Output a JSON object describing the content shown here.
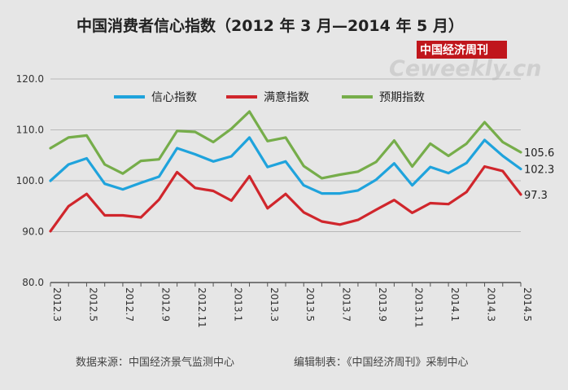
{
  "header": {
    "title": "中国消费者信心指数（2012 年 3 月—2014 年 5 月）"
  },
  "watermark": {
    "cn": "中国经济周刊",
    "en": "Ceweekly.cn",
    "brand_color": "#c0161c"
  },
  "footer": {
    "source": "数据来源：中国经济景气监测中心",
    "editor": "编辑制表：《中国经济周刊》采制中心"
  },
  "chart_data": {
    "type": "line",
    "title": "中国消费者信心指数（2012 年 3 月—2014 年 5 月）",
    "xlabel": "",
    "ylabel": "",
    "ylim": [
      80,
      120
    ],
    "yticks": [
      "80.0",
      "90.0",
      "100.0",
      "110.0",
      "120.0"
    ],
    "grid": "horizontal",
    "legend_position": "top-center",
    "x_tick_labels": [
      "2012.3",
      "2012.5",
      "2012.7",
      "2012.9",
      "2012.11",
      "2013.1",
      "2013.3",
      "2013.5",
      "2013.7",
      "2013.9",
      "2013.11",
      "2014.1",
      "2014.3",
      "2014.5"
    ],
    "x": [
      "2012.3",
      "2012.4",
      "2012.5",
      "2012.6",
      "2012.7",
      "2012.8",
      "2012.9",
      "2012.10",
      "2012.11",
      "2012.12",
      "2013.1",
      "2013.2",
      "2013.3",
      "2013.4",
      "2013.5",
      "2013.6",
      "2013.7",
      "2013.8",
      "2013.9",
      "2013.10",
      "2013.11",
      "2013.12",
      "2014.1",
      "2014.2",
      "2014.3",
      "2014.4",
      "2014.5"
    ],
    "series": [
      {
        "name": "信心指数",
        "color": "#1fa3dc",
        "values": [
          100.0,
          103.2,
          104.4,
          99.4,
          98.3,
          99.6,
          100.8,
          106.4,
          105.2,
          103.8,
          104.8,
          108.5,
          102.7,
          103.8,
          99.1,
          97.5,
          97.5,
          98.1,
          100.2,
          103.4,
          99.1,
          102.7,
          101.5,
          103.5,
          108.0,
          104.9,
          102.3
        ],
        "end_label": "102.3"
      },
      {
        "name": "满意指数",
        "color": "#d0262c",
        "values": [
          90.1,
          95.0,
          97.4,
          93.2,
          93.2,
          92.8,
          96.3,
          101.7,
          98.6,
          98.0,
          96.1,
          100.9,
          94.6,
          97.4,
          93.8,
          92.0,
          91.4,
          92.3,
          94.3,
          96.2,
          93.7,
          95.6,
          95.4,
          97.8,
          102.8,
          101.9,
          97.3
        ],
        "end_label": "97.3"
      },
      {
        "name": "预期指数",
        "color": "#76ad4a",
        "values": [
          106.4,
          108.5,
          108.9,
          103.2,
          101.4,
          103.9,
          104.2,
          109.8,
          109.6,
          107.6,
          110.2,
          113.6,
          107.8,
          108.5,
          102.9,
          100.5,
          101.2,
          101.8,
          103.7,
          107.9,
          102.8,
          107.3,
          104.9,
          107.3,
          111.5,
          107.6,
          105.6
        ],
        "end_label": "105.6"
      }
    ]
  }
}
